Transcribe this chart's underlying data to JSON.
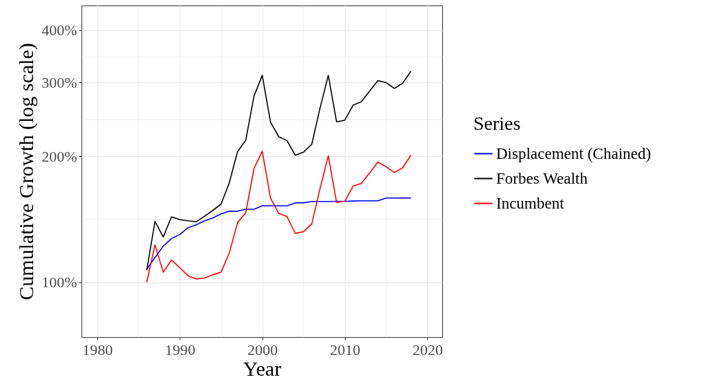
{
  "chart_data": {
    "type": "line",
    "xlabel": "Year",
    "ylabel": "Cumulative Growth (log scale)",
    "legend_title": "Series",
    "legend": "right",
    "log": true,
    "grid": true,
    "line_style": "solid",
    "marker": "none",
    "x": [
      1986,
      1987,
      1988,
      1989,
      1990,
      1991,
      1992,
      1993,
      1994,
      1995,
      1996,
      1997,
      1998,
      1999,
      2000,
      2001,
      2002,
      2003,
      2004,
      2005,
      2006,
      2007,
      2008,
      2009,
      2010,
      2011,
      2012,
      2013,
      2014,
      2015,
      2016,
      2017,
      2018
    ],
    "series": [
      {
        "name": "Displacement (Chained)",
        "color": "#0000ff",
        "values": [
          107.5,
          114.5,
          122,
          127.2,
          130,
          135,
          137.2,
          140.2,
          142.5,
          145.6,
          147.8,
          147.8,
          149.4,
          149.4,
          152.3,
          152.3,
          152.3,
          152.3,
          154.8,
          154.8,
          155.9,
          155.9,
          155.9,
          156.1,
          156.1,
          156.3,
          156.5,
          156.5,
          156.5,
          158.9,
          158.9,
          159,
          159
        ]
      },
      {
        "name": "Forbes Wealth",
        "color": "#000000",
        "values": [
          106.8,
          139.7,
          128.3,
          143.3,
          141.1,
          140.2,
          139.5,
          143.8,
          148.4,
          153.6,
          172.8,
          205,
          218.5,
          278.6,
          312,
          241,
          222.6,
          217.9,
          201.1,
          204.5,
          213.7,
          260.7,
          312,
          241.6,
          243.9,
          264.8,
          269.8,
          286,
          303,
          299.8,
          290.4,
          298.6,
          319
        ]
      },
      {
        "name": "Incumbent",
        "color": "#ff0000",
        "values": [
          100,
          122.8,
          105.7,
          113,
          108.4,
          103.7,
          101.8,
          102.4,
          104.2,
          105.7,
          117.4,
          138.8,
          146.6,
          187.1,
          205.5,
          158.8,
          146,
          143.5,
          130.8,
          132.1,
          137.9,
          167.5,
          200.4,
          155.2,
          156.1,
          169.6,
          172.3,
          182.4,
          193.6,
          188.8,
          182.8,
          187.6,
          201.1
        ]
      }
    ],
    "xlim": [
      1978.1,
      2021.8
    ],
    "ylim": [
      74,
      458
    ],
    "xticks": [
      1980,
      {
        "value": 1985,
        "label": null
      },
      1990,
      {
        "value": 1995,
        "label": null
      },
      2000,
      {
        "value": 2005,
        "label": null
      },
      2010,
      {
        "value": 2015,
        "label": null
      },
      2020
    ],
    "yticks": [
      {
        "value": 100,
        "label": "100%"
      },
      {
        "value": 141.4,
        "label": null
      },
      {
        "value": 200,
        "label": "200%"
      },
      {
        "value": 244.9,
        "label": null
      },
      {
        "value": 300,
        "label": "300%"
      },
      {
        "value": 346.4,
        "label": null
      },
      {
        "value": 400,
        "label": "400%"
      }
    ]
  }
}
